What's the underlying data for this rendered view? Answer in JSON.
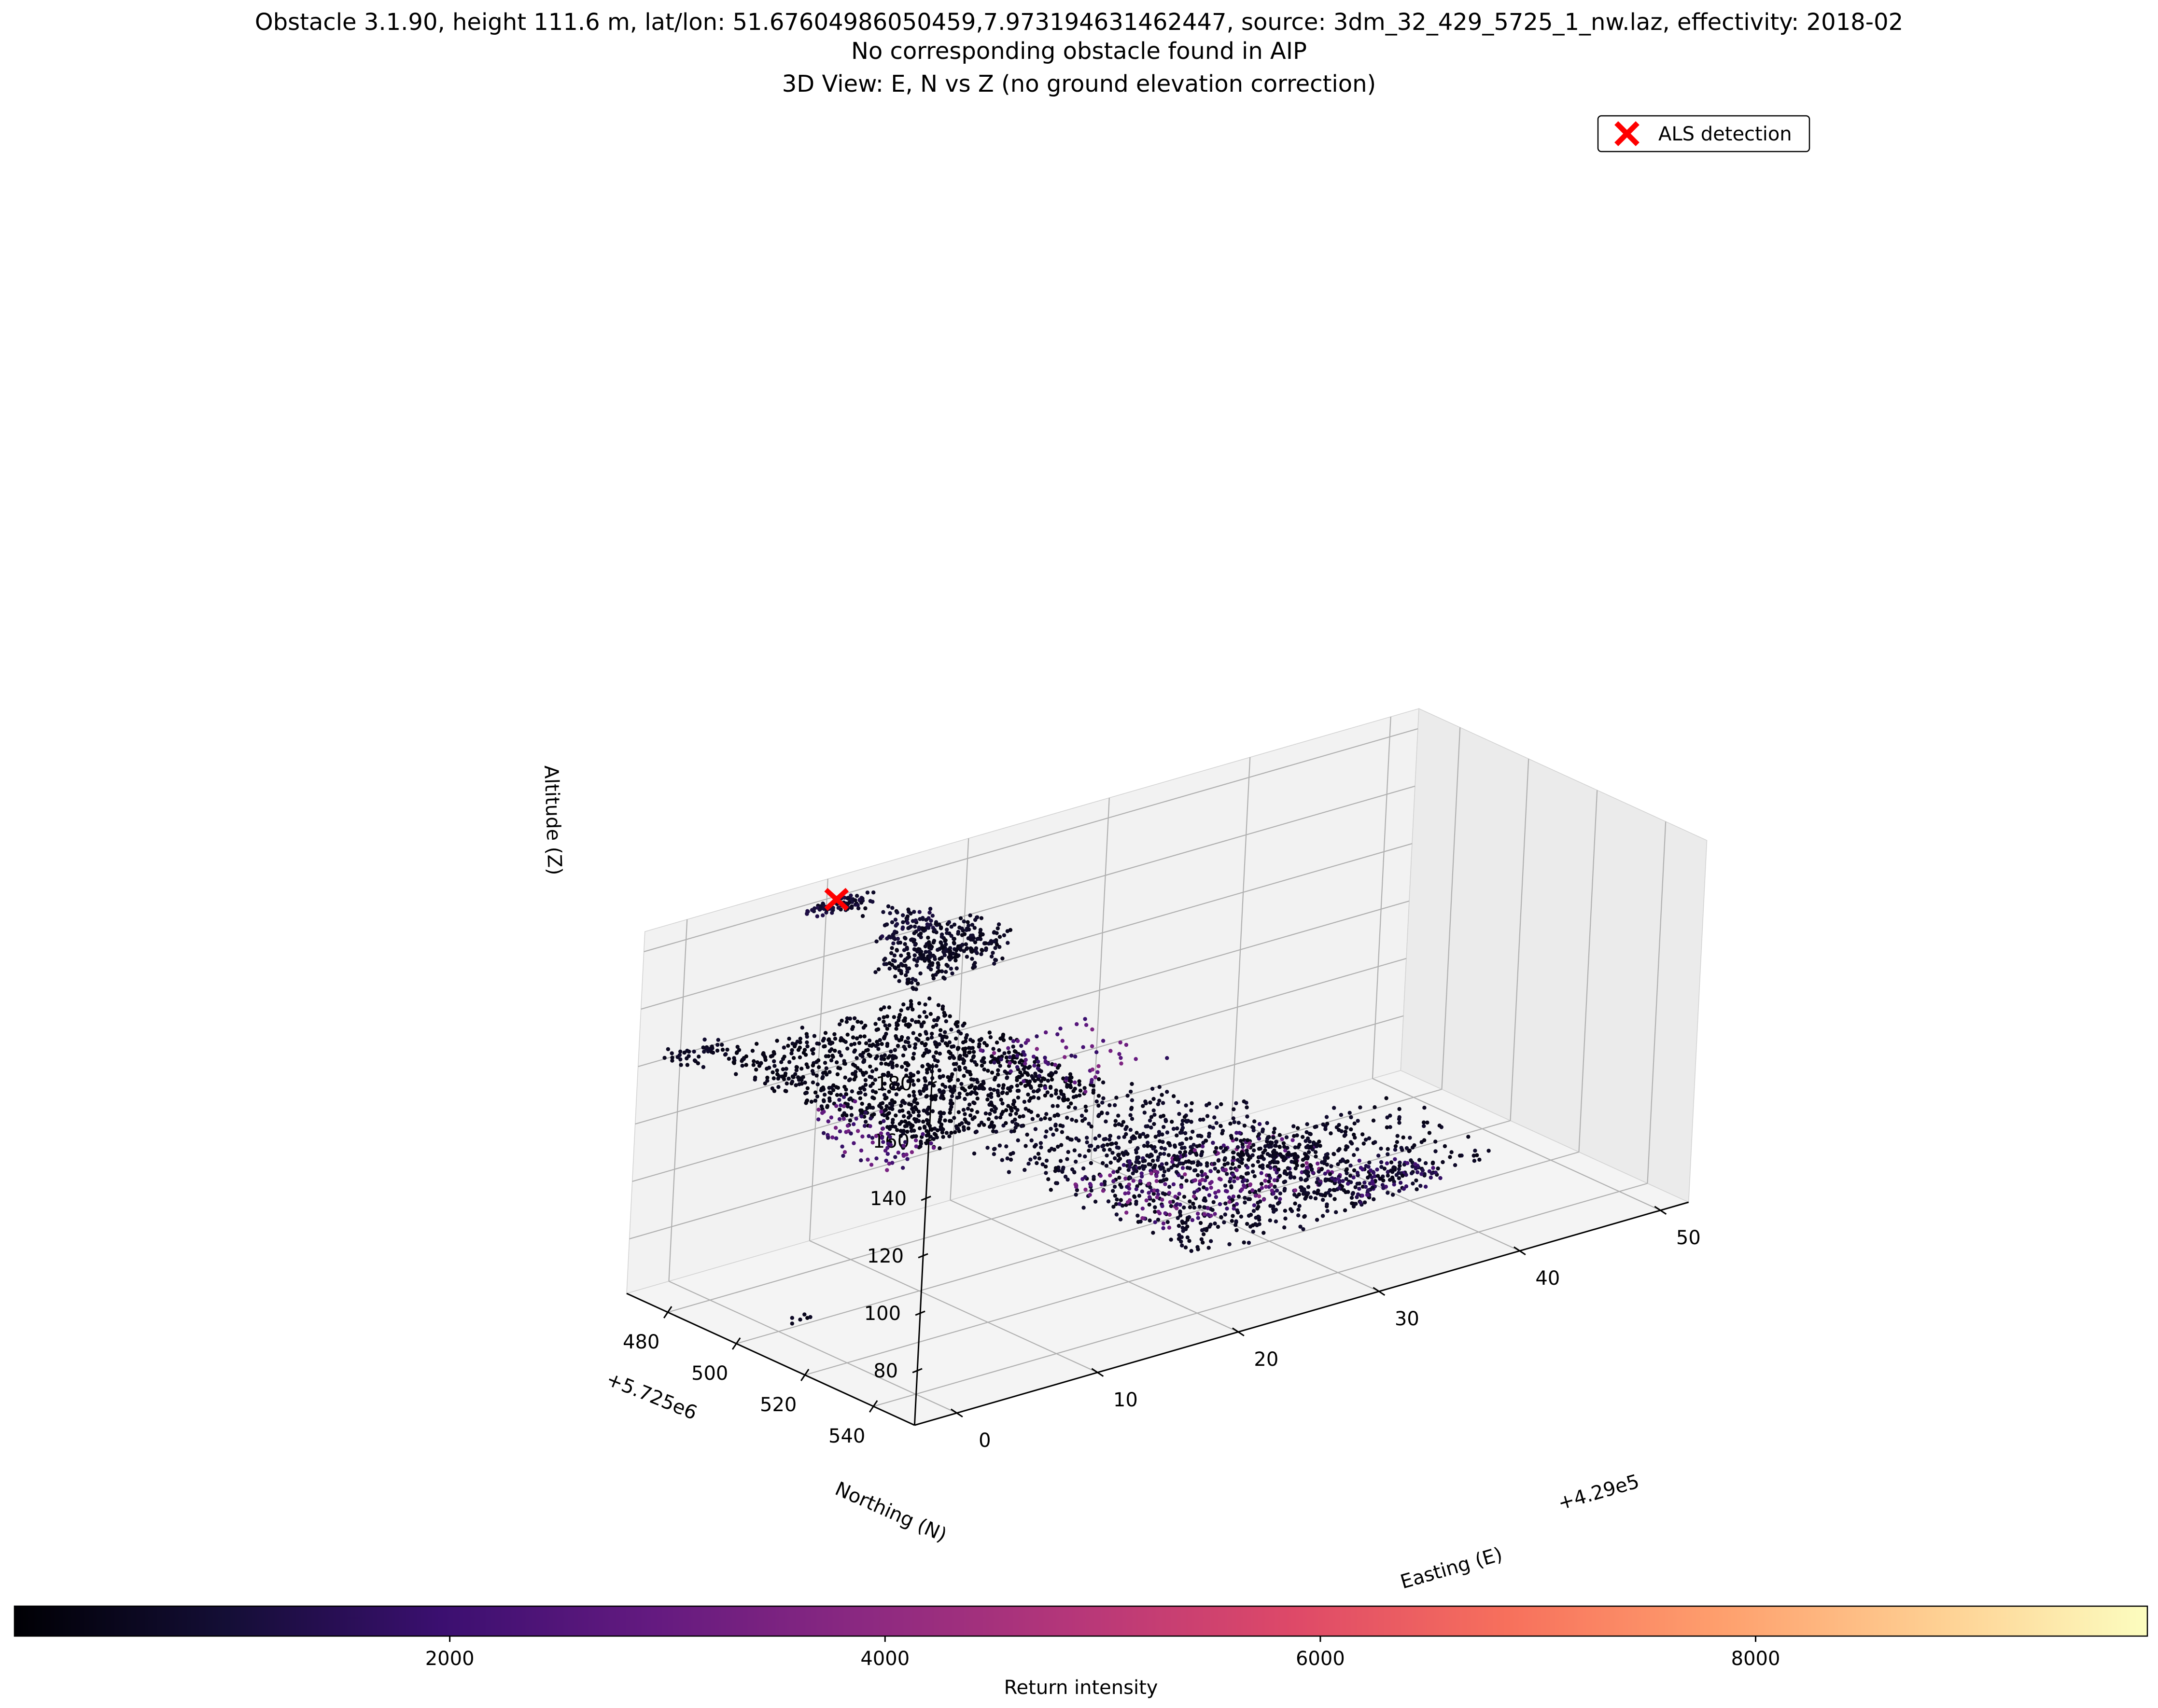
{
  "chart_data": {
    "type": "scatter",
    "title": "Obstacle 3.1.90, height 111.6 m, lat/lon: 51.67604986050459,7.973194631462447, source: 3dm_32_429_5725_1_nw.laz, effectivity: 2018-02",
    "subtitle": "No corresponding obstacle found in AIP",
    "view_title": "3D View: E, N vs Z (no ground elevation correction)",
    "projection": "3d",
    "x_axis": {
      "label": "Easting (E)",
      "offset_label": "+4.29e5",
      "ticks": [
        0,
        10,
        20,
        30,
        40,
        50
      ],
      "tick_labels": [
        "0",
        "10",
        "20",
        "30",
        "40",
        "50"
      ],
      "range": [
        -3,
        52
      ]
    },
    "y_axis": {
      "label": "Northing (N)",
      "offset_label": "+5.725e6",
      "ticks": [
        480,
        500,
        520,
        540
      ],
      "tick_labels": [
        "480",
        "500",
        "520",
        "540"
      ],
      "range": [
        468,
        552
      ]
    },
    "z_axis": {
      "label": "Altitude (Z)",
      "ticks": [
        80,
        100,
        120,
        140,
        160,
        180
      ],
      "tick_labels": [
        "80",
        "100",
        "120",
        "140",
        "160",
        "180"
      ],
      "range": [
        61,
        187
      ]
    },
    "grid": true,
    "legend": {
      "placement": "top-right",
      "entries": [
        {
          "label": "ALS detection",
          "marker": "x",
          "color": "#ff0000"
        }
      ]
    },
    "colorbar": {
      "label": "Return intensity",
      "orientation": "horizontal",
      "colormap": "magma",
      "range": [
        0,
        9800
      ],
      "ticks": [
        2000,
        4000,
        6000,
        8000
      ],
      "tick_labels": [
        "2000",
        "4000",
        "6000",
        "8000"
      ]
    },
    "series": [
      {
        "name": "ALS detection",
        "marker": "x",
        "color": "#ff0000",
        "points": [
          {
            "e": 10.5,
            "n": 468.8,
            "z": 179.6
          }
        ]
      }
    ],
    "point_clusters": [
      {
        "e": [
          8,
          13
        ],
        "n": [
          468,
          472
        ],
        "z": [
          177,
          180
        ],
        "intensity": 900,
        "count": 70
      },
      {
        "e": [
          11,
          14
        ],
        "n": [
          468,
          480
        ],
        "z": [
          173,
          176
        ],
        "intensity": 700,
        "count": 18
      },
      {
        "e": [
          14,
          18
        ],
        "n": [
          467,
          470
        ],
        "z": [
          158,
          166
        ],
        "intensity": 900,
        "count": 60
      },
      {
        "e": [
          14,
          21
        ],
        "n": [
          466,
          478
        ],
        "z": [
          147,
          160
        ],
        "intensity": 600,
        "count": 300
      },
      {
        "e": [
          2,
          16
        ],
        "n": [
          472,
          528
        ],
        "z": [
          134,
          141
        ],
        "intensity": 400,
        "count": 1100
      },
      {
        "e": [
          0,
          4
        ],
        "n": [
          500,
          528
        ],
        "z": [
          130,
          139
        ],
        "intensity": 2400,
        "count": 80
      },
      {
        "e": [
          12,
          20
        ],
        "n": [
          502,
          530
        ],
        "z": [
          141,
          145
        ],
        "intensity": 2600,
        "count": 70
      },
      {
        "e": [
          -2,
          2
        ],
        "n": [
          470,
          476
        ],
        "z": [
          140,
          146
        ],
        "intensity": 600,
        "count": 40
      },
      {
        "e": [
          20,
          34
        ],
        "n": [
          472,
          540
        ],
        "z": [
          79,
          87
        ],
        "intensity": 600,
        "count": 700
      },
      {
        "e": [
          20,
          34
        ],
        "n": [
          500,
          530
        ],
        "z": [
          83,
          86
        ],
        "intensity": 2600,
        "count": 220
      },
      {
        "e": [
          26,
          38
        ],
        "n": [
          480,
          500
        ],
        "z": [
          71,
          80
        ],
        "intensity": 700,
        "count": 120
      },
      {
        "e": [
          32,
          45
        ],
        "n": [
          492,
          528
        ],
        "z": [
          70,
          78
        ],
        "intensity": 600,
        "count": 200
      },
      {
        "e": [
          36,
          42
        ],
        "n": [
          508,
          522
        ],
        "z": [
          66,
          70
        ],
        "intensity": 1600,
        "count": 90
      },
      {
        "e": [
          34,
          42
        ],
        "n": [
          488,
          502
        ],
        "z": [
          66,
          70
        ],
        "intensity": 500,
        "count": 80
      },
      {
        "e": [
          38,
          42
        ],
        "n": [
          508,
          512
        ],
        "z": [
          61,
          64
        ],
        "intensity": 500,
        "count": 12
      },
      {
        "e": [
          1,
          3
        ],
        "n": [
          498,
          500
        ],
        "z": [
          61,
          63
        ],
        "intensity": 500,
        "count": 6
      },
      {
        "e": [
          26,
          30
        ],
        "n": [
          485,
          488
        ],
        "z": [
          98,
          100
        ],
        "intensity": 500,
        "count": 1
      }
    ]
  }
}
